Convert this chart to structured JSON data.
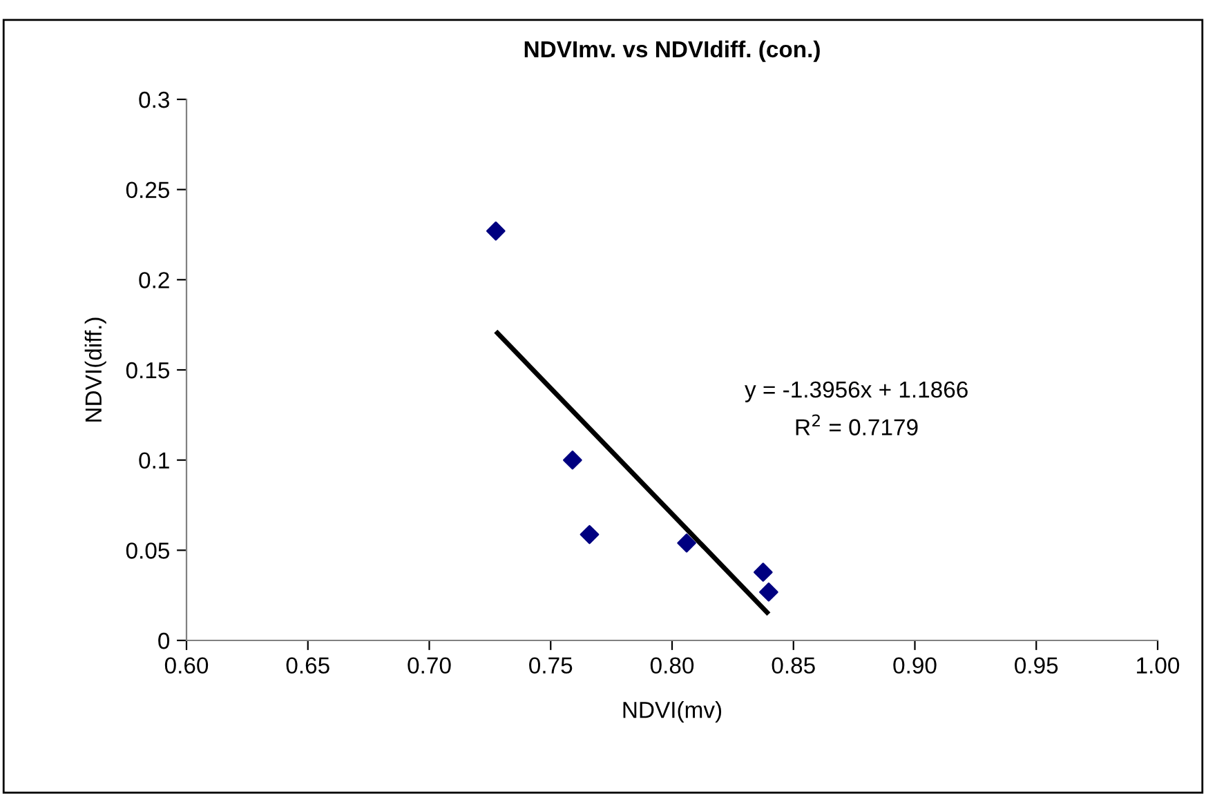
{
  "chart_data": {
    "type": "scatter",
    "title": "NDVImv. vs NDVIdiff. (con.)",
    "xlabel": "NDVI(mv)",
    "ylabel": "NDVI(diff.)",
    "grid": false,
    "legend": false,
    "series": [
      {
        "marker": "diamond",
        "color": "#000080",
        "x": [
          0.7274,
          0.759,
          0.766,
          0.806,
          0.8375,
          0.8398
        ],
        "values": [
          0.227,
          0.1,
          0.0587,
          0.054,
          0.0378,
          0.0268
        ]
      },
      {
        "type": "line",
        "color": "#000000",
        "x": [
          0.7274,
          0.8398
        ],
        "values": [
          0.1714,
          0.0146
        ]
      }
    ],
    "annotations": [
      "y = -1.3956x + 1.1866",
      "R$^{2}$ = 0.7179"
    ],
    "xlim": [
      0.6,
      1.0
    ],
    "ylim": [
      0,
      0.3
    ],
    "xticks": [
      {
        "value": 0.6,
        "label": "0.60"
      },
      {
        "value": 0.65,
        "label": "0.65"
      },
      {
        "value": 0.7,
        "label": "0.70"
      },
      {
        "value": 0.75,
        "label": "0.75"
      },
      {
        "value": 0.8,
        "label": "0.80"
      },
      {
        "value": 0.85,
        "label": "0.85"
      },
      {
        "value": 0.9,
        "label": "0.90"
      },
      {
        "value": 0.95,
        "label": "0.95"
      },
      {
        "value": 1.0,
        "label": "1.00"
      }
    ],
    "yticks": [
      0,
      0.05,
      0.1,
      0.15,
      0.2,
      0.25,
      0.3
    ]
  }
}
